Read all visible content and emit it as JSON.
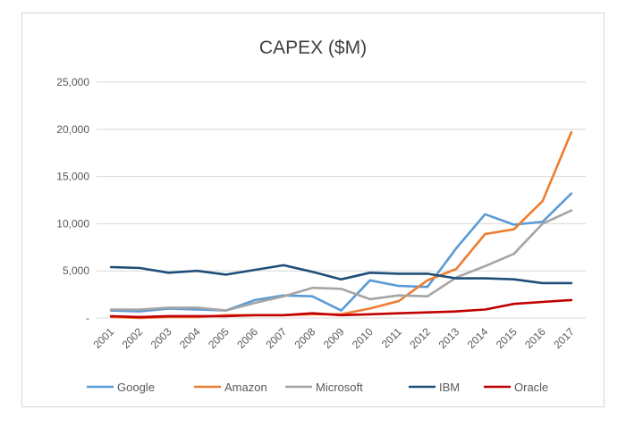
{
  "chart_data": {
    "type": "line",
    "title": "CAPEX ($M)",
    "xlabel": "",
    "ylabel": "",
    "categories": [
      "2001",
      "2002",
      "2003",
      "2004",
      "2005",
      "2006",
      "2007",
      "2008",
      "2009",
      "2010",
      "2011",
      "2012",
      "2013",
      "2014",
      "2015",
      "2016",
      "2017"
    ],
    "y_ticks": [
      {
        "value": 0,
        "label": "-"
      },
      {
        "value": 5000,
        "label": "5,000"
      },
      {
        "value": 10000,
        "label": "10,000"
      },
      {
        "value": 15000,
        "label": "15,000"
      },
      {
        "value": 20000,
        "label": "20,000"
      },
      {
        "value": 25000,
        "label": "25,000"
      }
    ],
    "ylim": [
      0,
      25000
    ],
    "grid": true,
    "legend_position": "bottom",
    "series": [
      {
        "name": "Google",
        "color": "#5b9bd5",
        "values": [
          800,
          700,
          1000,
          900,
          800,
          1900,
          2400,
          2300,
          800,
          4000,
          3400,
          3300,
          7400,
          11000,
          9900,
          10200,
          13200
        ]
      },
      {
        "name": "Amazon",
        "color": "#ed7d31",
        "values": [
          100,
          0,
          100,
          100,
          300,
          300,
          300,
          400,
          400,
          1000,
          1800,
          4000,
          5200,
          8900,
          9400,
          12400,
          19700
        ]
      },
      {
        "name": "Microsoft",
        "color": "#a5a5a5",
        "values": [
          900,
          900,
          1100,
          1100,
          800,
          1600,
          2300,
          3200,
          3100,
          2000,
          2400,
          2300,
          4300,
          5500,
          6800,
          10000,
          11400
        ]
      },
      {
        "name": "IBM",
        "color": "#1f4e79",
        "values": [
          5400,
          5300,
          4800,
          5000,
          4600,
          5100,
          5600,
          4900,
          4100,
          4800,
          4700,
          4700,
          4200,
          4200,
          4100,
          3700,
          3700
        ]
      },
      {
        "name": "Oracle",
        "color": "#c00000",
        "values": [
          200,
          100,
          200,
          200,
          200,
          300,
          300,
          500,
          300,
          400,
          500,
          600,
          700,
          900,
          1500,
          1700,
          1900
        ]
      }
    ]
  }
}
